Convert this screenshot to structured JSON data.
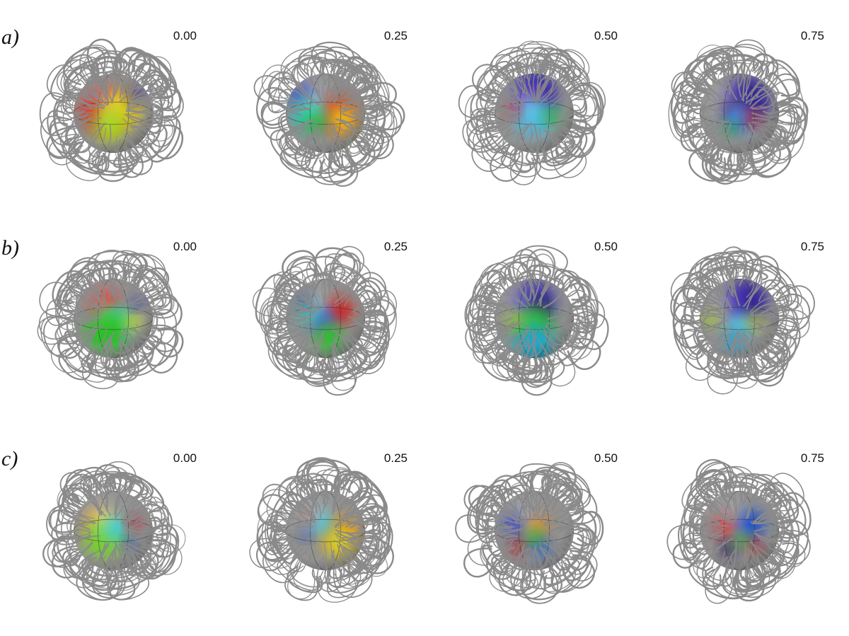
{
  "rows": [
    {
      "label": "a)",
      "panels": [
        {
          "phase": "0.00",
          "spots": [
            {
              "color": "#e8120c",
              "r": 0.42,
              "a": 205,
              "d": 0.25
            },
            {
              "color": "#f2d60a",
              "r": 0.35,
              "a": 330,
              "d": 0.25
            },
            {
              "color": "#b5e81c",
              "r": 0.3,
              "a": 110,
              "d": 0.3
            },
            {
              "color": "#2b1fae",
              "r": 0.14,
              "a": 320,
              "d": 0.75
            }
          ]
        },
        {
          "phase": "0.25",
          "spots": [
            {
              "color": "#e8120c",
              "r": 0.32,
              "a": 0,
              "d": 0.3
            },
            {
              "color": "#f6c51a",
              "r": 0.28,
              "a": 20,
              "d": 0.45
            },
            {
              "color": "#2a3bd0",
              "r": 0.22,
              "a": 215,
              "d": 0.72
            },
            {
              "color": "#1fd7c8",
              "r": 0.28,
              "a": 180,
              "d": 0.45
            },
            {
              "color": "#25c425",
              "r": 0.18,
              "a": 140,
              "d": 0.35
            }
          ]
        },
        {
          "phase": "0.50",
          "spots": [
            {
              "color": "#2c1cb8",
              "r": 0.4,
              "a": 270,
              "d": 0.5
            },
            {
              "color": "#6a1aa8",
              "r": 0.22,
              "a": 270,
              "d": 0.32
            },
            {
              "color": "#4fc8f0",
              "r": 0.34,
              "a": 90,
              "d": 0.1
            },
            {
              "color": "#18c926",
              "r": 0.14,
              "a": 10,
              "d": 0.45
            },
            {
              "color": "#e0101a",
              "r": 0.12,
              "a": 190,
              "d": 0.55
            }
          ]
        },
        {
          "phase": "0.75",
          "spots": [
            {
              "color": "#2a13a8",
              "r": 0.4,
              "a": 300,
              "d": 0.4
            },
            {
              "color": "#36003d",
              "r": 0.18,
              "a": 215,
              "d": 0.15
            },
            {
              "color": "#3a8cf2",
              "r": 0.26,
              "a": 90,
              "d": 0.15
            },
            {
              "color": "#e01515",
              "r": 0.14,
              "a": 20,
              "d": 0.35
            },
            {
              "color": "#21b82c",
              "r": 0.12,
              "a": 120,
              "d": 0.45
            }
          ]
        }
      ]
    },
    {
      "label": "b)",
      "panels": [
        {
          "phase": "0.00",
          "spots": [
            {
              "color": "#e8120c",
              "r": 0.28,
              "a": 235,
              "d": 0.4
            },
            {
              "color": "#21d8d8",
              "r": 0.28,
              "a": 30,
              "d": 0.15
            },
            {
              "color": "#27cf22",
              "r": 0.38,
              "a": 120,
              "d": 0.35
            },
            {
              "color": "#f2e11a",
              "r": 0.15,
              "a": 10,
              "d": 0.5
            },
            {
              "color": "#2b1fae",
              "r": 0.1,
              "a": 330,
              "d": 0.75
            }
          ]
        },
        {
          "phase": "0.25",
          "spots": [
            {
              "color": "#e8120c",
              "r": 0.24,
              "a": 330,
              "d": 0.4
            },
            {
              "color": "#2a59e0",
              "r": 0.22,
              "a": 170,
              "d": 0.1
            },
            {
              "color": "#22d6c0",
              "r": 0.22,
              "a": 200,
              "d": 0.5
            },
            {
              "color": "#1d1a8a",
              "r": 0.14,
              "a": 220,
              "d": 0.7
            },
            {
              "color": "#2acc2a",
              "r": 0.24,
              "a": 80,
              "d": 0.5
            }
          ]
        },
        {
          "phase": "0.50",
          "spots": [
            {
              "color": "#2c1cb8",
              "r": 0.36,
              "a": 270,
              "d": 0.4
            },
            {
              "color": "#150018",
              "r": 0.14,
              "a": 285,
              "d": 0.3
            },
            {
              "color": "#22c628",
              "r": 0.34,
              "a": 90,
              "d": 0.2
            },
            {
              "color": "#1fb2d8",
              "r": 0.36,
              "a": 90,
              "d": 0.65
            },
            {
              "color": "#a8d617",
              "r": 0.14,
              "a": 175,
              "d": 0.5
            }
          ]
        },
        {
          "phase": "0.75",
          "spots": [
            {
              "color": "#2a13a8",
              "r": 0.38,
              "a": 290,
              "d": 0.45
            },
            {
              "color": "#4fd3f2",
              "r": 0.22,
              "a": 90,
              "d": 0.2
            },
            {
              "color": "#c9e61a",
              "r": 0.14,
              "a": 10,
              "d": 0.4
            },
            {
              "color": "#aadc1c",
              "r": 0.14,
              "a": 180,
              "d": 0.7
            },
            {
              "color": "#1ea8e0",
              "r": 0.18,
              "a": 100,
              "d": 0.6
            }
          ]
        }
      ]
    },
    {
      "label": "c)",
      "panels": [
        {
          "phase": "0.00",
          "spots": [
            {
              "color": "#f6a21a",
              "r": 0.3,
              "a": 200,
              "d": 0.35
            },
            {
              "color": "#7be22a",
              "r": 0.36,
              "a": 140,
              "d": 0.3
            },
            {
              "color": "#36d8f0",
              "r": 0.22,
              "a": 320,
              "d": 0.1
            },
            {
              "color": "#e0101a",
              "r": 0.12,
              "a": 340,
              "d": 0.55
            },
            {
              "color": "#1a2ab0",
              "r": 0.1,
              "a": 40,
              "d": 0.55
            }
          ]
        },
        {
          "phase": "0.25",
          "spots": [
            {
              "color": "#f09a12",
              "r": 0.32,
              "a": 10,
              "d": 0.4
            },
            {
              "color": "#e8e01a",
              "r": 0.26,
              "a": 40,
              "d": 0.45
            },
            {
              "color": "#32c8e8",
              "r": 0.2,
              "a": 240,
              "d": 0.25
            },
            {
              "color": "#d82018",
              "r": 0.1,
              "a": 220,
              "d": 0.55
            },
            {
              "color": "#2442c0",
              "r": 0.1,
              "a": 170,
              "d": 0.5
            }
          ]
        },
        {
          "phase": "0.50",
          "spots": [
            {
              "color": "#0a2cd8",
              "r": 0.2,
              "a": 200,
              "d": 0.5
            },
            {
              "color": "#f08a1a",
              "r": 0.2,
              "a": 300,
              "d": 0.15
            },
            {
              "color": "#c0101a",
              "r": 0.14,
              "a": 135,
              "d": 0.6
            },
            {
              "color": "#0d5de8",
              "r": 0.16,
              "a": 70,
              "d": 0.45
            },
            {
              "color": "#2ac820",
              "r": 0.14,
              "a": 90,
              "d": 0.15
            }
          ]
        },
        {
          "phase": "0.75",
          "spots": [
            {
              "color": "#e8101a",
              "r": 0.2,
              "a": 200,
              "d": 0.4
            },
            {
              "color": "#0c48e0",
              "r": 0.24,
              "a": 330,
              "d": 0.35
            },
            {
              "color": "#1a0a50",
              "r": 0.14,
              "a": 120,
              "d": 0.55
            },
            {
              "color": "#c01018",
              "r": 0.12,
              "a": 45,
              "d": 0.55
            },
            {
              "color": "#30c828",
              "r": 0.12,
              "a": 80,
              "d": 0.25
            }
          ]
        }
      ]
    }
  ]
}
